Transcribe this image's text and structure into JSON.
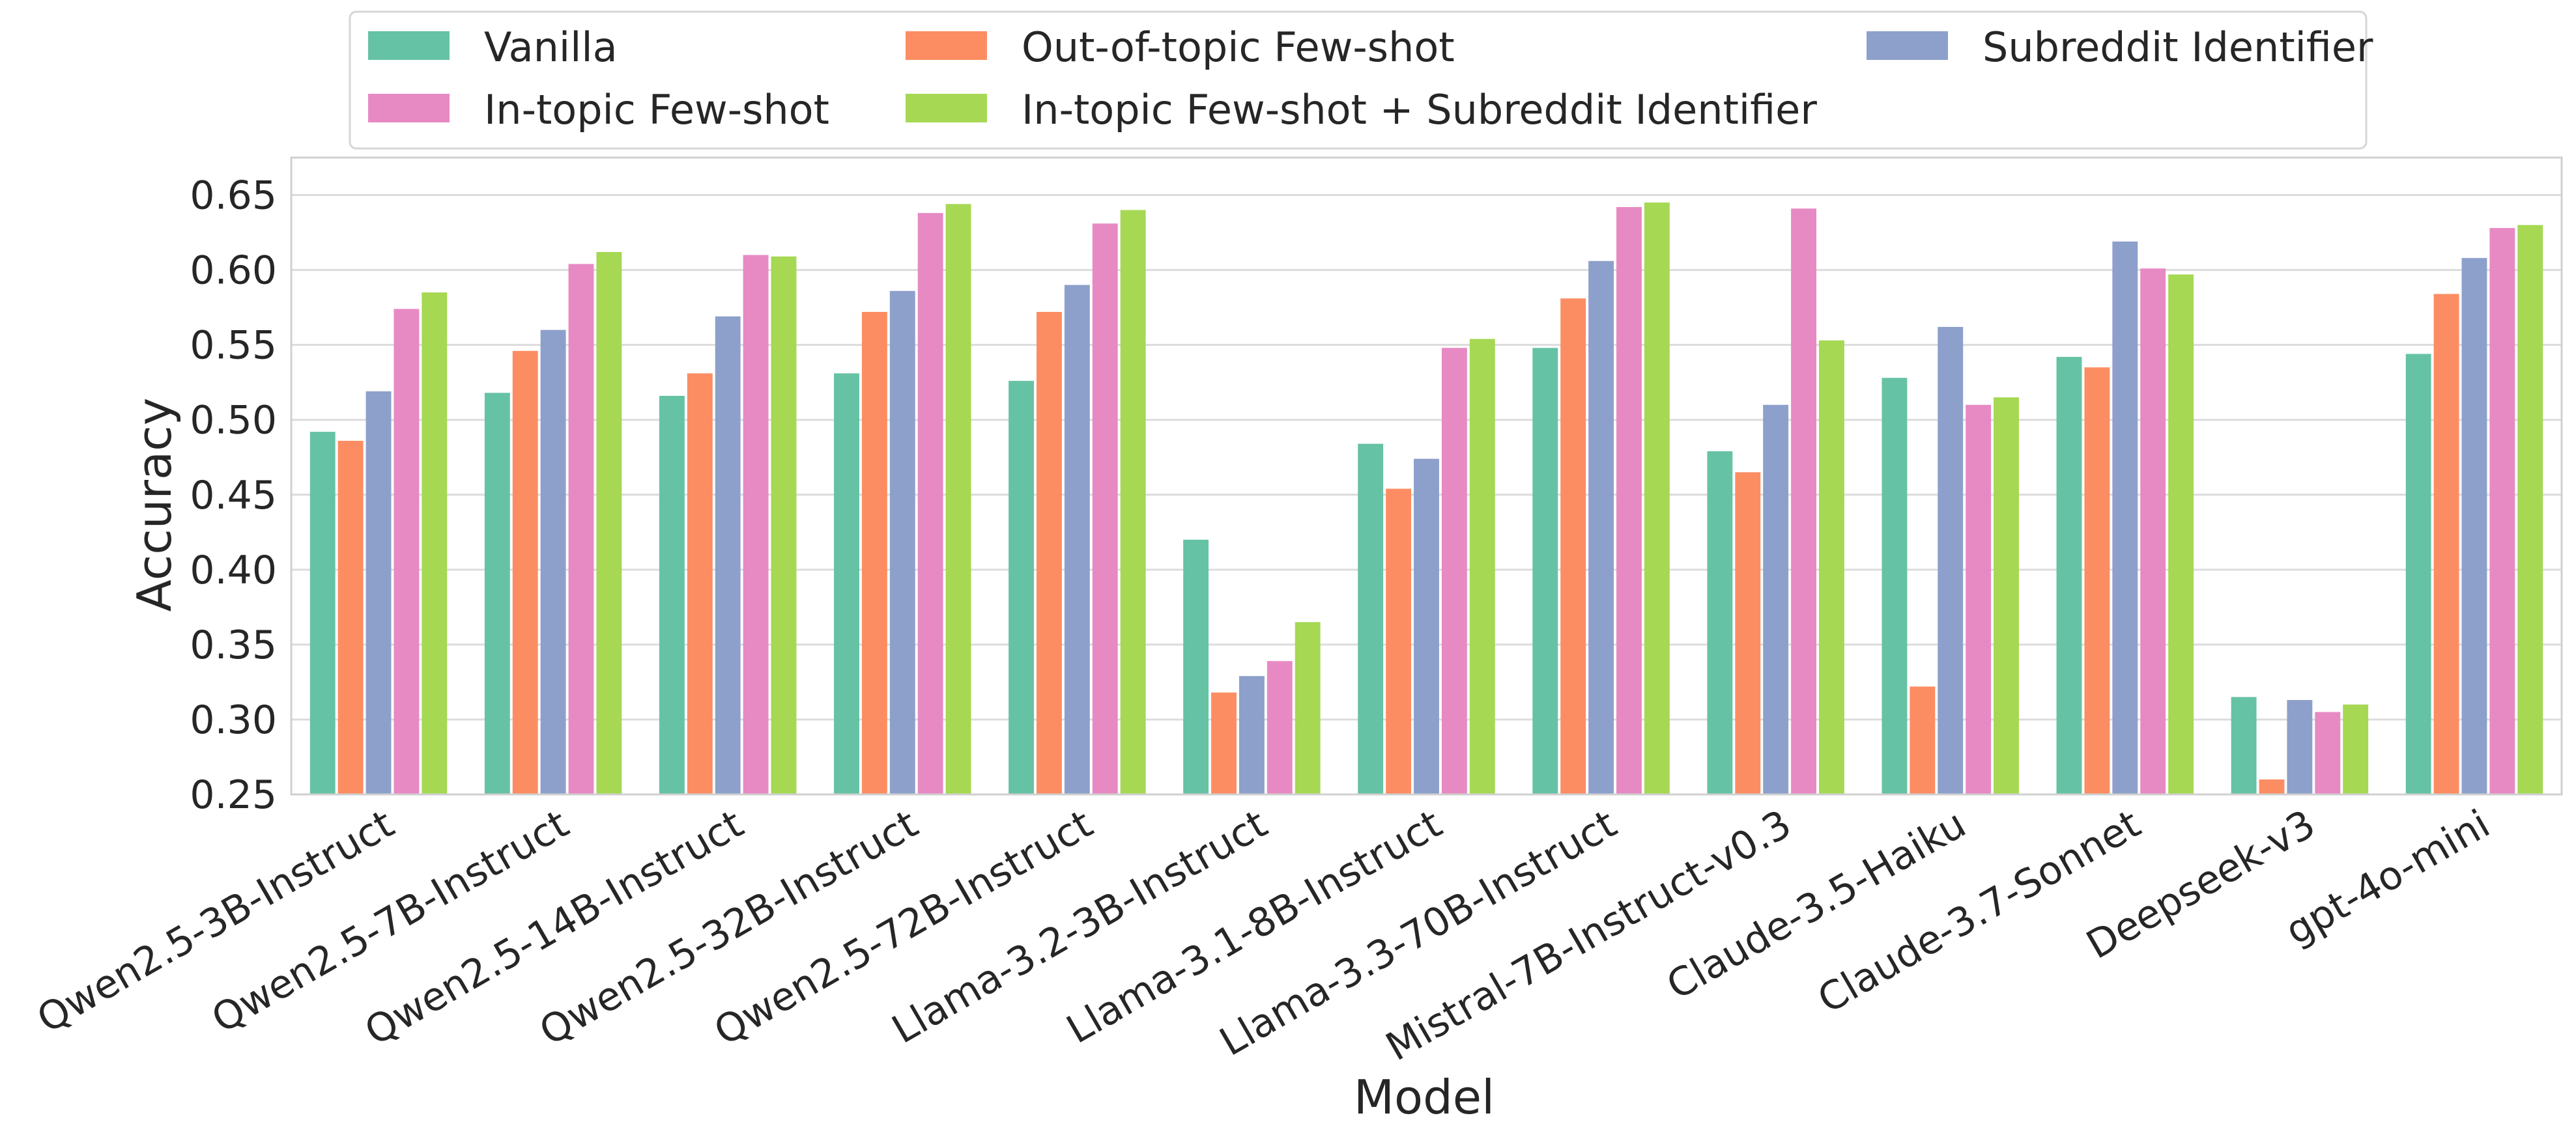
{
  "chart_data": {
    "type": "bar",
    "xlabel": "Model",
    "ylabel": "Accuracy",
    "ylim": [
      0.25,
      0.675
    ],
    "yticks": [
      "0.25",
      "0.30",
      "0.35",
      "0.40",
      "0.45",
      "0.50",
      "0.55",
      "0.60",
      "0.65"
    ],
    "grid": true,
    "legend_position": "top",
    "categories": [
      "Qwen2.5-3B-Instruct",
      "Qwen2.5-7B-Instruct",
      "Qwen2.5-14B-Instruct",
      "Qwen2.5-32B-Instruct",
      "Qwen2.5-72B-Instruct",
      "Llama-3.2-3B-Instruct",
      "Llama-3.1-8B-Instruct",
      "Llama-3.3-70B-Instruct",
      "Mistral-7B-Instruct-v0.3",
      "Claude-3.5-Haiku",
      "Claude-3.7-Sonnet",
      "Deepseek-v3",
      "gpt-4o-mini"
    ],
    "series": [
      {
        "name": "Vanilla",
        "color": "#66c2a5",
        "values": [
          0.492,
          0.518,
          0.516,
          0.531,
          0.526,
          0.42,
          0.484,
          0.548,
          0.479,
          0.528,
          0.542,
          0.315,
          0.544
        ]
      },
      {
        "name": "Out-of-topic Few-shot",
        "color": "#fc8d62",
        "values": [
          0.486,
          0.546,
          0.531,
          0.572,
          0.572,
          0.318,
          0.454,
          0.581,
          0.465,
          0.322,
          0.535,
          0.26,
          0.584
        ]
      },
      {
        "name": "Subreddit Identifier",
        "color": "#8da0cb",
        "values": [
          0.519,
          0.56,
          0.569,
          0.586,
          0.59,
          0.329,
          0.474,
          0.606,
          0.51,
          0.562,
          0.619,
          0.313,
          0.608
        ]
      },
      {
        "name": "In-topic Few-shot",
        "color": "#e78ac3",
        "values": [
          0.574,
          0.604,
          0.61,
          0.638,
          0.631,
          0.339,
          0.548,
          0.642,
          0.641,
          0.51,
          0.601,
          0.305,
          0.628
        ]
      },
      {
        "name": "In-topic Few-shot + Subreddit Identifier",
        "color": "#a6d854",
        "values": [
          0.585,
          0.612,
          0.609,
          0.644,
          0.64,
          0.365,
          0.554,
          0.645,
          0.553,
          0.515,
          0.597,
          0.31,
          0.63
        ]
      }
    ]
  }
}
